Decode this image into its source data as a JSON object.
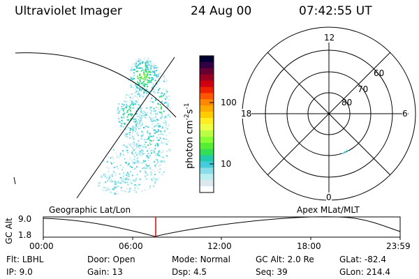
{
  "header": {
    "instrument": "Ultraviolet Imager",
    "date": "24 Aug 00",
    "time": "07:42:55 UT"
  },
  "colorbar": {
    "unit_prefix": "photon cm",
    "unit_exp1": "-2",
    "unit_mid": "s",
    "unit_exp2": "-1",
    "ticks": [
      "100",
      "10"
    ],
    "colors": [
      "#000033",
      "#330044",
      "#660033",
      "#990022",
      "#cc0011",
      "#ee2200",
      "#ff5500",
      "#ff8800",
      "#ffaa00",
      "#ffcc00",
      "#ffee22",
      "#eeff44",
      "#bbff44",
      "#88ff33",
      "#55ee33",
      "#33dd55",
      "#22ccaa",
      "#44ccdd",
      "#88dde8",
      "#bbeef0",
      "#dde8ee",
      "#ffffff"
    ]
  },
  "polar": {
    "mlt_labels": {
      "top": "12",
      "left": "18",
      "right": "6",
      "bottom": "0"
    },
    "lat_labels": [
      "60",
      "70",
      "80"
    ]
  },
  "timeline": {
    "axis_title": "GC Alt",
    "y_labels": [
      "9.0",
      "1.8"
    ],
    "left_label": "Geographic Lat/Lon",
    "right_label": "Apex MLat/MLT",
    "x_ticks": [
      "00:00",
      "06:00",
      "12:00",
      "18:00",
      "23:59"
    ]
  },
  "info": {
    "row1": [
      {
        "key": "Flt:",
        "value": "LBHL"
      },
      {
        "key": "Door:",
        "value": "Open"
      },
      {
        "key": "Mode:",
        "value": "Normal"
      },
      {
        "key": "GC Alt:",
        "value": "2.0 Re"
      },
      {
        "key": "GLat:",
        "value": "-82.4"
      }
    ],
    "row2": [
      {
        "key": "IP:",
        "value": "9.0"
      },
      {
        "key": "Gain:",
        "value": "13"
      },
      {
        "key": "Dsp:",
        "value": "4.5"
      },
      {
        "key": "Seq:",
        "value": "39"
      },
      {
        "key": "GLon:",
        "value": "214.4"
      }
    ]
  }
}
